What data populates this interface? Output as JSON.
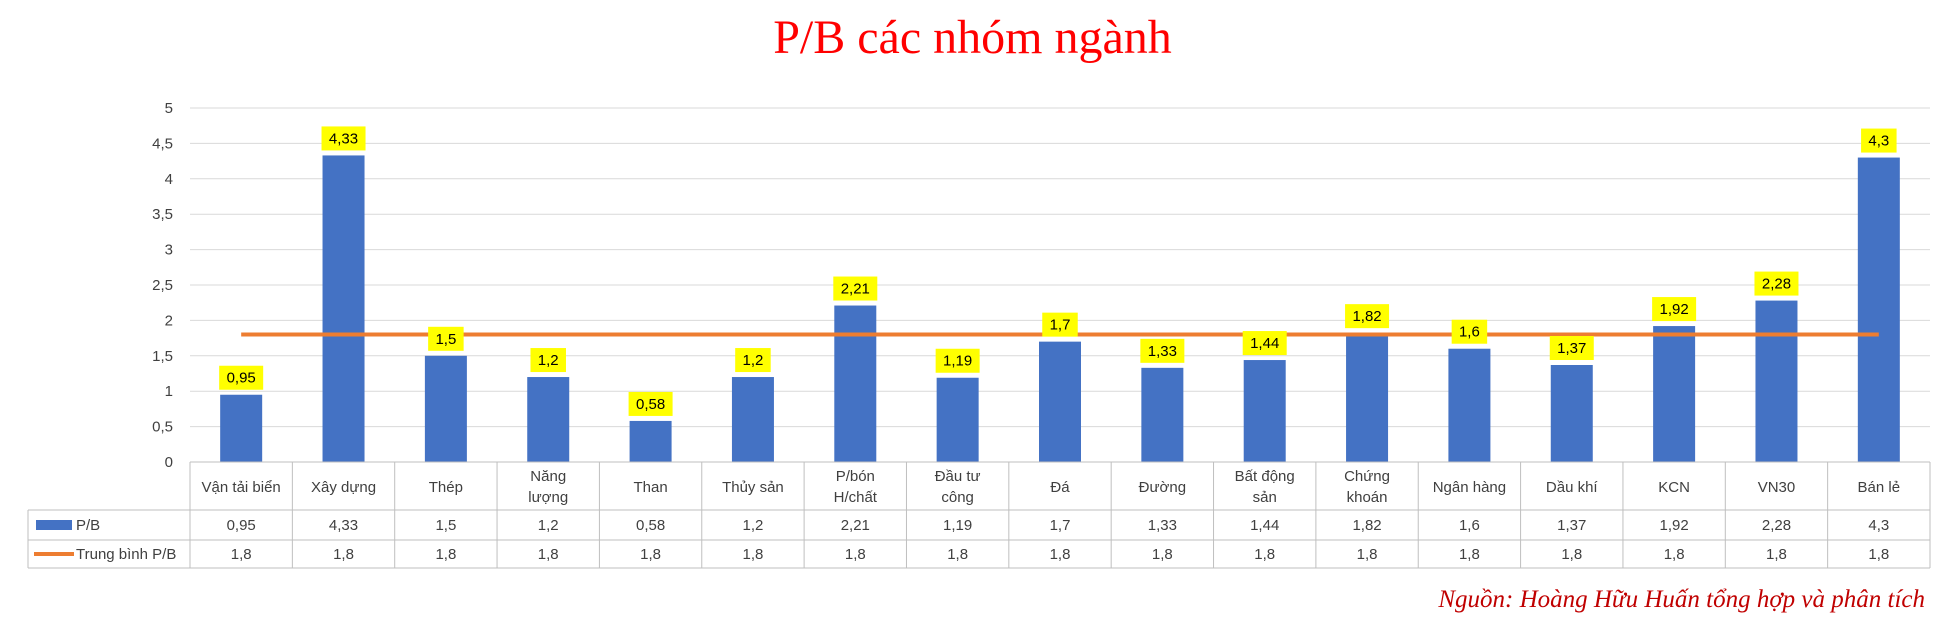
{
  "chart_data": {
    "type": "bar",
    "title": "P/B các nhóm ngành",
    "categories": [
      [
        "Vận tải biển"
      ],
      [
        "Xây dựng"
      ],
      [
        "Thép"
      ],
      [
        "Năng",
        "lượng"
      ],
      [
        "Than"
      ],
      [
        "Thủy sản"
      ],
      [
        "P/bón",
        "H/chất"
      ],
      [
        "Đầu tư",
        "công"
      ],
      [
        "Đá"
      ],
      [
        "Đường"
      ],
      [
        "Bất động",
        "sản"
      ],
      [
        "Chứng",
        "khoán"
      ],
      [
        "Ngân hàng"
      ],
      [
        "Dầu khí"
      ],
      [
        "KCN"
      ],
      [
        "VN30"
      ],
      [
        "Bán lẻ"
      ]
    ],
    "series": [
      {
        "name": "P/B",
        "kind": "bar",
        "color": "#4472c4",
        "values": [
          0.95,
          4.33,
          1.5,
          1.2,
          0.58,
          1.2,
          2.21,
          1.19,
          1.7,
          1.33,
          1.44,
          1.82,
          1.6,
          1.37,
          1.92,
          2.28,
          4.3
        ],
        "labels": [
          "0,95",
          "4,33",
          "1,5",
          "1,2",
          "0,58",
          "1,2",
          "2,21",
          "1,19",
          "1,7",
          "1,33",
          "1,44",
          "1,82",
          "1,6",
          "1,37",
          "1,92",
          "2,28",
          "4,3"
        ]
      },
      {
        "name": "Trung bình P/B",
        "kind": "line",
        "color": "#ed7d31",
        "values": [
          1.8,
          1.8,
          1.8,
          1.8,
          1.8,
          1.8,
          1.8,
          1.8,
          1.8,
          1.8,
          1.8,
          1.8,
          1.8,
          1.8,
          1.8,
          1.8,
          1.8
        ],
        "labels": [
          "1,8",
          "1,8",
          "1,8",
          "1,8",
          "1,8",
          "1,8",
          "1,8",
          "1,8",
          "1,8",
          "1,8",
          "1,8",
          "1,8",
          "1,8",
          "1,8",
          "1,8",
          "1,8",
          "1,8"
        ]
      }
    ],
    "ylim": [
      0,
      5
    ],
    "yticks": [
      "0",
      "0,5",
      "1",
      "1,5",
      "2",
      "2,5",
      "3",
      "3,5",
      "4",
      "4,5",
      "5"
    ],
    "grid": true,
    "data_label_bg": "#ffff00",
    "data_table": true
  },
  "source_note": "Nguồn: Hoàng Hữu Huấn tổng hợp và phân tích"
}
